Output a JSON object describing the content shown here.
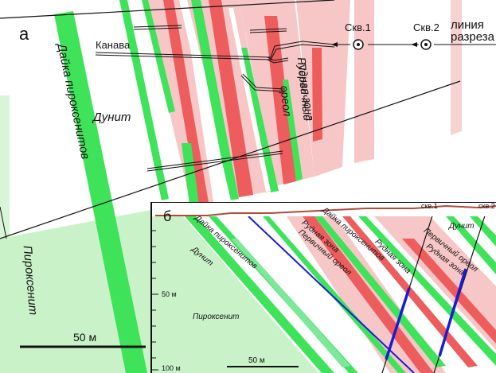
{
  "main": {
    "panel_letter": "а",
    "labels": {
      "dike": "Дайка пироксенитов",
      "dunite": "Дунит",
      "pyroxenite": "Пироксенит",
      "trench": "Канава",
      "ore_zone": "Рудная зона",
      "halo_line1": "Первичный",
      "halo_line2": "ореол",
      "well1": "Скв.1",
      "well2": "Скв.2",
      "section_line1": "линия",
      "section_line2": "разреза"
    },
    "scale_bar_label": "50 м"
  },
  "inset": {
    "panel_letter": "б",
    "labels": {
      "dike": "Дайка пироксенитов",
      "dunite": "Дунит",
      "pyroxenite": "Пироксенит",
      "ore_zone_a": "Рудная зона",
      "ore_zone_b": "Рудная зона",
      "ore_zone_c": "Рудная зона",
      "halo_a": "Первичный ореол",
      "halo_b": "Первичный ореол",
      "dike_b": "Дайка пироксенитов",
      "dunite_b": "Дунит",
      "well1": "скв.1",
      "well2": "скв.2"
    },
    "depth_labels": [
      "50 м",
      "100 м"
    ],
    "scale_bar_label": "50 м"
  },
  "colors": {
    "dike_green": "#3ee35a",
    "light_green": "#c9f2c9",
    "pink": "#f7c6c6",
    "red": "#ee5d5d",
    "blue": "#1b1bd6",
    "surface": "#b04a3a"
  }
}
